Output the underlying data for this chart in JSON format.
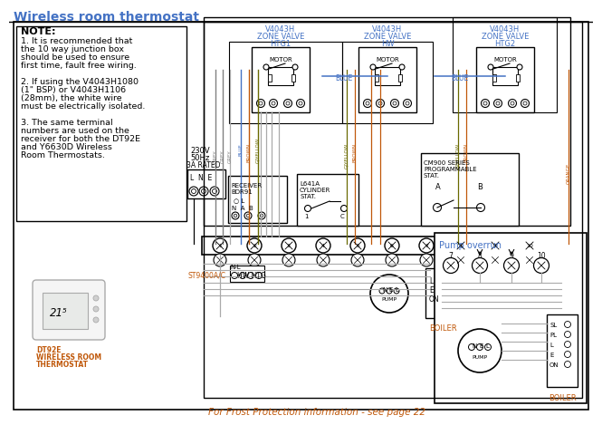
{
  "title": "Wireless room thermostat",
  "bg": "#ffffff",
  "blk": "#000000",
  "blue": "#4472c4",
  "orange": "#c0580a",
  "grey": "#808080",
  "lgrey": "#aaaaaa",
  "gyellow": "#6a6a00",
  "footer": "For Frost Protection information - see page 22"
}
